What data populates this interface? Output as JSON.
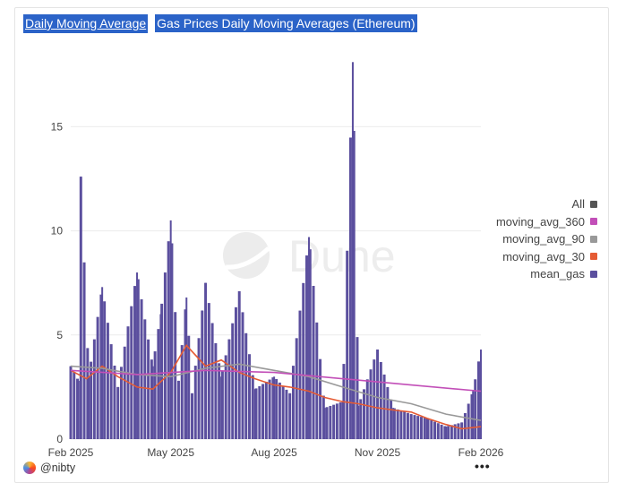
{
  "tabs": [
    {
      "label": "Daily Moving Average"
    },
    {
      "label": "Gas Prices Daily Moving Averages (Ethereum)"
    }
  ],
  "watermark": {
    "text": "Dune"
  },
  "footer": {
    "author": "@nibty",
    "more_label": "•••"
  },
  "legend": [
    {
      "label": "All",
      "color": "#555555"
    },
    {
      "label": "moving_avg_360",
      "color": "#c24fb8"
    },
    {
      "label": "moving_avg_90",
      "color": "#999999"
    },
    {
      "label": "moving_avg_30",
      "color": "#e55b34"
    },
    {
      "label": "mean_gas",
      "color": "#5b4f9e"
    }
  ],
  "chart_data": {
    "type": "bar",
    "title": "",
    "xlabel": "",
    "ylabel": "",
    "xlim": [
      "2025-02-01",
      "2026-02-01"
    ],
    "ylim": [
      0,
      18.5
    ],
    "yticks": [
      0,
      5,
      10,
      15
    ],
    "ytick_labels": [
      "0",
      "5",
      "10",
      "15"
    ],
    "xticks": [
      "2025-02-01",
      "2025-05-01",
      "2025-08-01",
      "2025-11-01",
      "2026-02-01"
    ],
    "xtick_labels": [
      "Feb 2025",
      "May 2025",
      "Aug 2025",
      "Nov 2025",
      "Feb 2026"
    ],
    "grid": true,
    "legend_position": "right",
    "series": [
      {
        "name": "mean_gas",
        "kind": "bar",
        "color": "#5b4f9e",
        "x": [
          "2025-02-01",
          "2025-02-08",
          "2025-02-10",
          "2025-02-17",
          "2025-03-01",
          "2025-03-15",
          "2025-04-01",
          "2025-04-15",
          "2025-04-22",
          "2025-05-01",
          "2025-05-08",
          "2025-05-15",
          "2025-05-20",
          "2025-06-01",
          "2025-06-15",
          "2025-07-01",
          "2025-07-15",
          "2025-08-01",
          "2025-08-15",
          "2025-09-01",
          "2025-09-15",
          "2025-10-01",
          "2025-10-10",
          "2025-10-15",
          "2025-11-01",
          "2025-11-15",
          "2025-12-01",
          "2025-12-15",
          "2026-01-01",
          "2026-01-15",
          "2026-01-25",
          "2026-02-01"
        ],
        "y": [
          3.5,
          2.8,
          12.6,
          3.0,
          7.3,
          2.5,
          8.0,
          3.5,
          6.0,
          10.5,
          2.8,
          6.8,
          2.2,
          7.5,
          3.0,
          7.1,
          2.4,
          3.0,
          2.2,
          9.7,
          1.5,
          1.8,
          18.1,
          1.6,
          4.3,
          1.5,
          1.2,
          1.0,
          0.6,
          0.8,
          2.3,
          4.3
        ]
      },
      {
        "name": "moving_avg_30",
        "kind": "line",
        "color": "#e55b34",
        "x": [
          "2025-02-01",
          "2025-02-15",
          "2025-03-01",
          "2025-03-15",
          "2025-04-01",
          "2025-04-15",
          "2025-05-01",
          "2025-05-15",
          "2025-06-01",
          "2025-06-15",
          "2025-07-01",
          "2025-07-15",
          "2025-08-01",
          "2025-08-15",
          "2025-09-01",
          "2025-09-15",
          "2025-10-01",
          "2025-10-15",
          "2025-11-01",
          "2025-11-15",
          "2025-12-01",
          "2025-12-15",
          "2026-01-01",
          "2026-01-15",
          "2026-02-01"
        ],
        "y": [
          3.3,
          2.9,
          3.5,
          3.0,
          2.5,
          2.4,
          3.2,
          4.5,
          3.5,
          3.8,
          3.2,
          2.9,
          2.6,
          2.5,
          2.3,
          2.0,
          1.8,
          1.7,
          1.5,
          1.4,
          1.3,
          1.0,
          0.7,
          0.5,
          0.6
        ]
      },
      {
        "name": "moving_avg_90",
        "kind": "line",
        "color": "#999999",
        "x": [
          "2025-02-01",
          "2025-03-01",
          "2025-04-01",
          "2025-05-01",
          "2025-06-01",
          "2025-07-01",
          "2025-08-01",
          "2025-09-01",
          "2025-10-01",
          "2025-11-01",
          "2025-12-01",
          "2026-01-01",
          "2026-02-01"
        ],
        "y": [
          3.5,
          3.4,
          3.1,
          3.0,
          3.4,
          3.6,
          3.3,
          3.0,
          2.5,
          2.0,
          1.7,
          1.2,
          0.9
        ]
      },
      {
        "name": "moving_avg_360",
        "kind": "line",
        "color": "#c24fb8",
        "x": [
          "2025-02-01",
          "2025-04-01",
          "2025-06-01",
          "2025-08-01",
          "2025-10-01",
          "2025-12-01",
          "2026-02-01"
        ],
        "y": [
          3.3,
          3.1,
          3.3,
          3.2,
          2.9,
          2.6,
          2.3
        ]
      }
    ]
  }
}
